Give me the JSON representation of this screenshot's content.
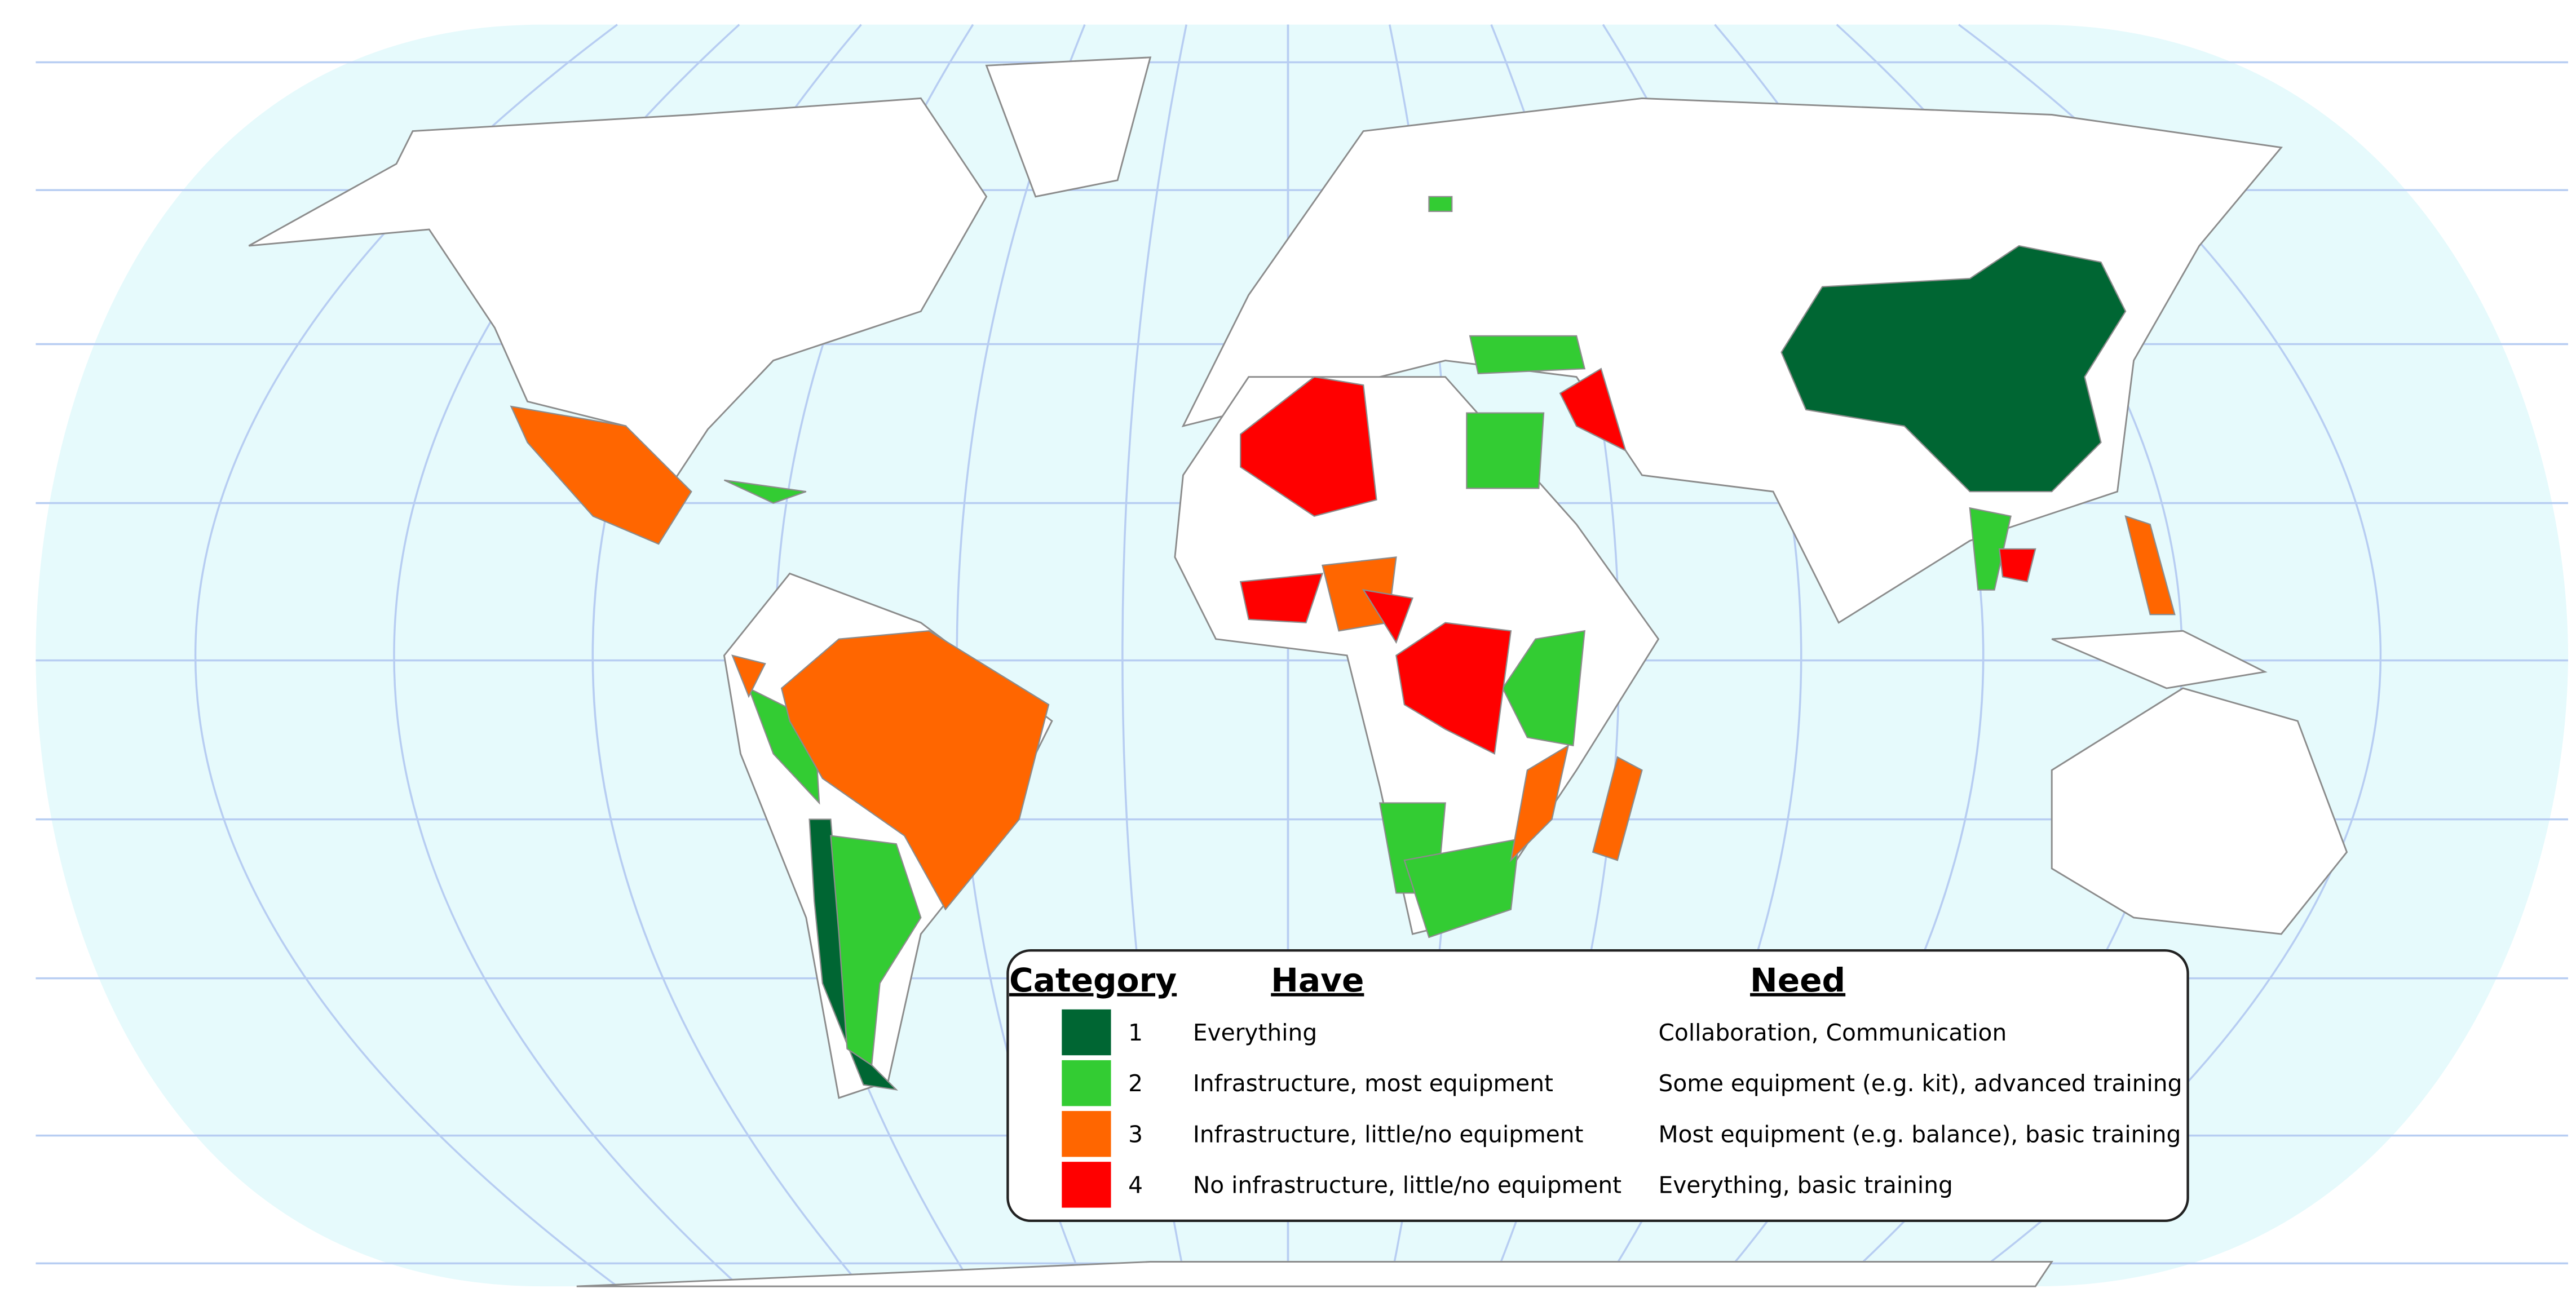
{
  "legend": {
    "headers": [
      "Category",
      "Have",
      "Need"
    ],
    "rows": [
      {
        "category": 1,
        "color": "#006633",
        "have": "Everything",
        "need": "Collaboration, Communication"
      },
      {
        "category": 2,
        "color": "#33cc33",
        "have": "Infrastructure, most equipment",
        "need": "Some equipment (e.g. kit), advanced training"
      },
      {
        "category": 3,
        "color": "#ff6600",
        "have": "Infrastructure, little/no equipment",
        "need": "Most equipment (e.g. balance), basic training"
      },
      {
        "category": 4,
        "color": "#ff0000",
        "have": "No infrastructure, little/no equipment",
        "need": "Everything, basic training"
      }
    ]
  }
}
